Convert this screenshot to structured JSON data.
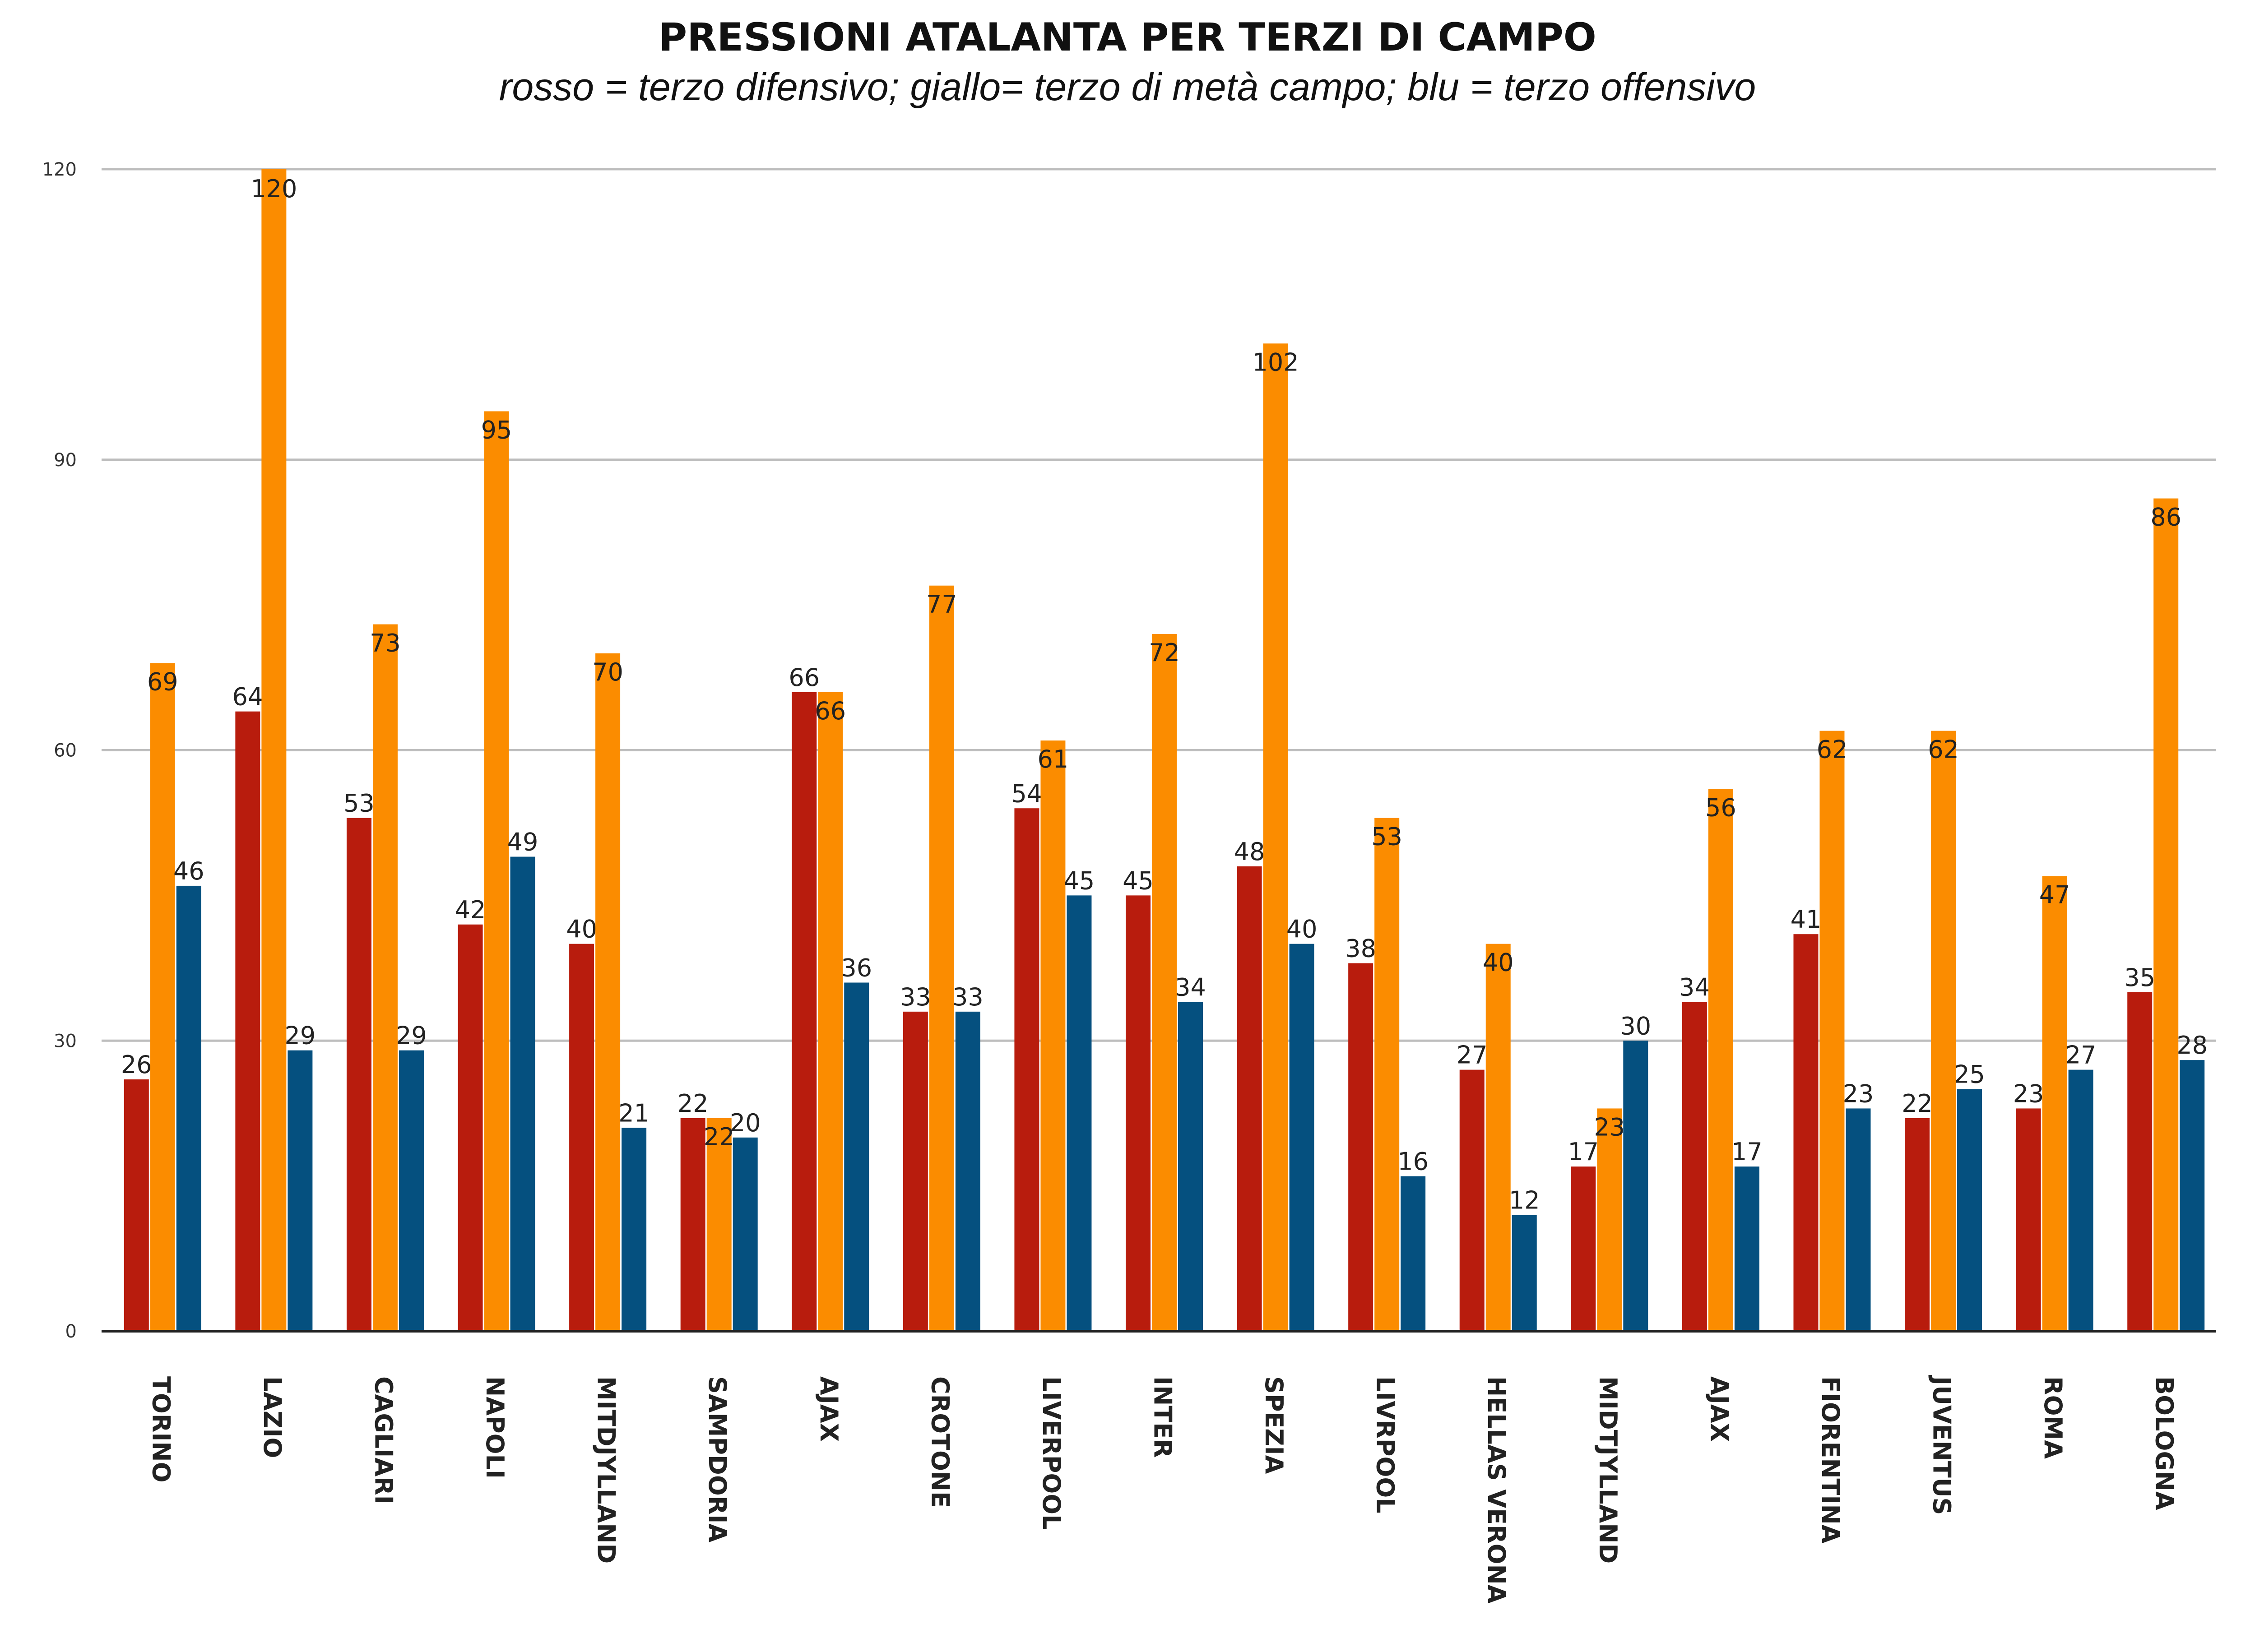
{
  "chart_data": {
    "type": "bar",
    "title": "PRESSIONI ATALANTA PER TERZI DI CAMPO",
    "subtitle": "rosso = terzo difensivo; giallo= terzo di metà campo; blu = terzo offensivo",
    "xlabel": "",
    "ylabel": "",
    "ylim": [
      0,
      120
    ],
    "yticks": [
      0,
      30,
      60,
      90,
      120
    ],
    "grid": true,
    "categories": [
      "TORINO",
      "LAZIO",
      "CAGLIARI",
      "NAPOLI",
      "MITDJYLLAND",
      "SAMPDORIA",
      "AJAX",
      "CROTONE",
      "LIVERPOOL",
      "INTER",
      "SPEZIA",
      "LIVRPOOL",
      "HELLAS VERONA",
      "MIDTJYLLAND",
      "AJAX",
      "FIORENTINA",
      "JUVENTUS",
      "ROMA",
      "BOLOGNA"
    ],
    "series": [
      {
        "values": [
          26,
          64,
          53,
          42,
          40,
          22,
          66,
          33,
          54,
          45,
          48,
          38,
          27,
          17,
          34,
          41,
          22,
          23,
          35
        ],
        "color": "#b81c0d"
      },
      {
        "values": [
          69,
          120,
          73,
          95,
          70,
          22,
          66,
          77,
          61,
          72,
          102,
          53,
          40,
          23,
          56,
          62,
          62,
          47,
          86
        ],
        "color": "#fb8c00"
      },
      {
        "values": [
          46,
          29,
          29,
          49,
          21,
          20,
          36,
          33,
          45,
          34,
          40,
          16,
          12,
          30,
          17,
          23,
          25,
          27,
          28
        ],
        "color": "#05507f"
      }
    ]
  }
}
